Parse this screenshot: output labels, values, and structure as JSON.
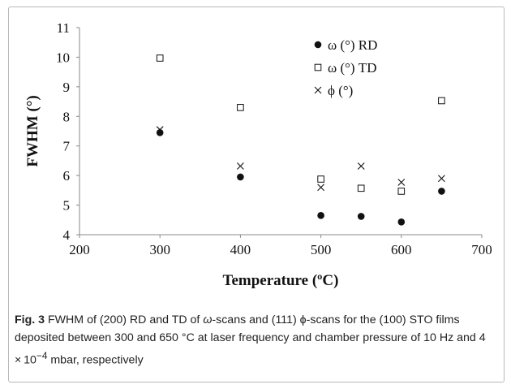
{
  "chart_data": {
    "type": "scatter",
    "xlabel": "Temperature (ºC)",
    "ylabel": "FWHM (°)",
    "xlim": [
      200,
      700
    ],
    "ylim": [
      4,
      11
    ],
    "xticks": [
      200,
      300,
      400,
      500,
      600,
      700
    ],
    "yticks": [
      4,
      5,
      6,
      7,
      8,
      9,
      10,
      11
    ],
    "grid": false,
    "legend_position": "top-right",
    "series": [
      {
        "name": "ω (°) RD",
        "marker": "filled-circle",
        "color": "#111111",
        "x": [
          300,
          400,
          500,
          550,
          600,
          650
        ],
        "y": [
          7.45,
          5.95,
          4.65,
          4.62,
          4.43,
          5.47
        ]
      },
      {
        "name": "ω (°) TD",
        "marker": "open-square",
        "color": "#111111",
        "x": [
          300,
          400,
          500,
          550,
          600,
          650
        ],
        "y": [
          9.97,
          8.3,
          5.88,
          5.57,
          5.47,
          8.53
        ]
      },
      {
        "name": "ϕ (°)",
        "marker": "cross",
        "color": "#111111",
        "x": [
          300,
          400,
          500,
          550,
          600,
          650
        ],
        "y": [
          7.55,
          6.32,
          5.6,
          6.32,
          5.77,
          5.9
        ]
      }
    ]
  },
  "caption": {
    "label": "Fig. 3",
    "p1": " FWHM of (200) RD and TD of ",
    "omega": "ω",
    "p2": "-scans and (111) ϕ-scans for the (100) STO films deposited between 300 and 650 °C at laser frequency and chamber pressure of 10 Hz and 4 × 10",
    "sup": "−4",
    "p3": " mbar, respectively"
  }
}
